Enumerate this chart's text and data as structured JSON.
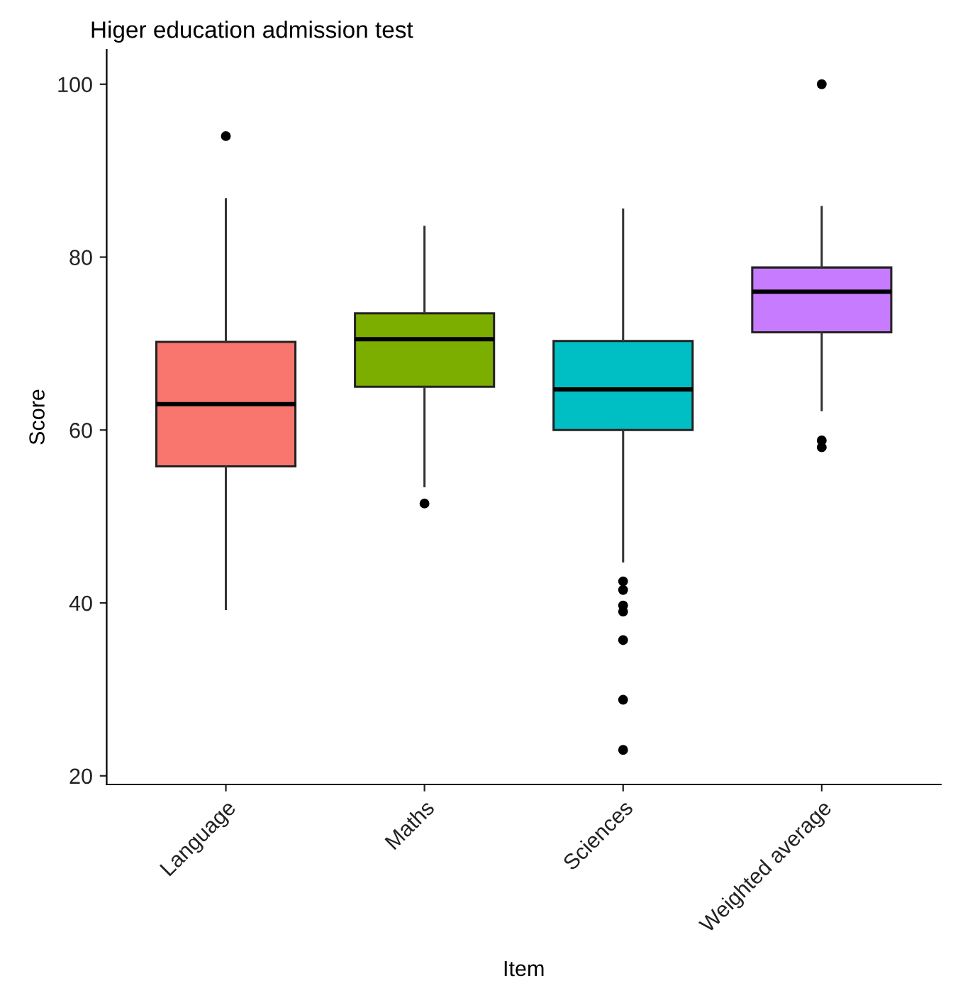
{
  "chart_data": {
    "type": "box",
    "title": "Higer education admission test",
    "xlabel": "Item",
    "ylabel": "Score",
    "categories": [
      "Language",
      "Maths",
      "Sciences",
      "Weighted average"
    ],
    "colors": [
      "#f8766d",
      "#7cae00",
      "#00bfc4",
      "#c77cff"
    ],
    "boxes": [
      {
        "low": 39.3,
        "q1": 55.8,
        "median": 63,
        "q3": 70.2,
        "high": 86.7,
        "outliers": [
          94
        ]
      },
      {
        "low": 53.5,
        "q1": 65,
        "median": 70.5,
        "q3": 73.5,
        "high": 83.5,
        "outliers": [
          51.5
        ]
      },
      {
        "low": 44.8,
        "q1": 60,
        "median": 64.7,
        "q3": 70.3,
        "high": 85.5,
        "outliers": [
          42.5,
          41.5,
          39.7,
          39,
          35.7,
          28.8,
          23
        ]
      },
      {
        "low": 62.3,
        "q1": 71.3,
        "median": 76,
        "q3": 78.8,
        "high": 85.8,
        "outliers": [
          100,
          58.8,
          58
        ]
      }
    ],
    "ylim": [
      19,
      104
    ],
    "yticks": [
      20,
      40,
      60,
      80,
      100
    ],
    "grid": false,
    "legend": false
  }
}
